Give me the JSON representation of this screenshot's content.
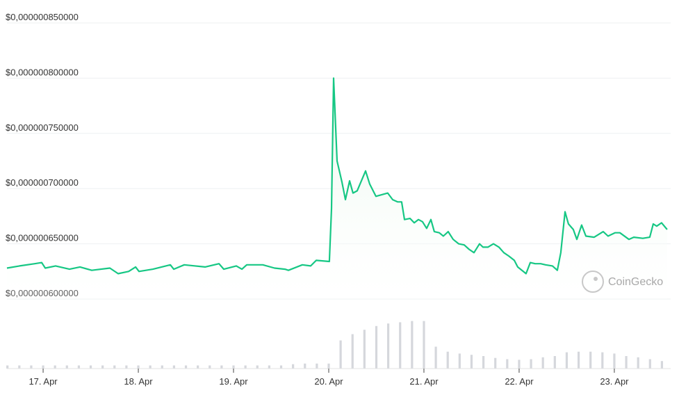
{
  "chart_data": {
    "type": "line",
    "watermark": "CoinGecko",
    "color": "#16c784",
    "fill": "#e6f6e9",
    "x": [
      16.62,
      16.752,
      16.912,
      16.985,
      17.022,
      17.131,
      17.277,
      17.387,
      17.511,
      17.701,
      17.788,
      17.898,
      17.971,
      18.007,
      18.153,
      18.336,
      18.372,
      18.482,
      18.701,
      18.847,
      18.898,
      19.029,
      19.088,
      19.139,
      19.307,
      19.431,
      19.54,
      19.577,
      19.723,
      19.81,
      19.869,
      20.007,
      20.029,
      20.051,
      20.088,
      20.139,
      20.175,
      20.219,
      20.255,
      20.299,
      20.387,
      20.431,
      20.496,
      20.62,
      20.672,
      20.723,
      20.766,
      20.796,
      20.854,
      20.898,
      20.942,
      20.985,
      21.029,
      21.073,
      21.109,
      21.161,
      21.204,
      21.255,
      21.307,
      21.365,
      21.423,
      21.474,
      21.526,
      21.584,
      21.62,
      21.672,
      21.73,
      21.788,
      21.839,
      21.891,
      21.949,
      21.985,
      22.073,
      22.117,
      22.168,
      22.226,
      22.277,
      22.35,
      22.401,
      22.438,
      22.482,
      22.518,
      22.569,
      22.606,
      22.657,
      22.701,
      22.788,
      22.883,
      22.934,
      23.007,
      23.058,
      23.153,
      23.204,
      23.299,
      23.372,
      23.409,
      23.445,
      23.496,
      23.555
    ],
    "values": [
      6.28e-07,
      6.3e-07,
      6.32e-07,
      6.33e-07,
      6.28e-07,
      6.3e-07,
      6.27e-07,
      6.29e-07,
      6.26e-07,
      6.28e-07,
      6.23e-07,
      6.25e-07,
      6.29e-07,
      6.25e-07,
      6.27e-07,
      6.31e-07,
      6.27e-07,
      6.31e-07,
      6.29e-07,
      6.32e-07,
      6.27e-07,
      6.3e-07,
      6.27e-07,
      6.31e-07,
      6.31e-07,
      6.28e-07,
      6.27e-07,
      6.26e-07,
      6.31e-07,
      6.3e-07,
      6.35e-07,
      6.34e-07,
      6.82e-07,
      8e-07,
      7.25e-07,
      7.06e-07,
      6.9e-07,
      7.07e-07,
      6.96e-07,
      6.98e-07,
      7.16e-07,
      7.04e-07,
      6.93e-07,
      6.96e-07,
      6.9e-07,
      6.88e-07,
      6.88e-07,
      6.72e-07,
      6.73e-07,
      6.69e-07,
      6.72e-07,
      6.7e-07,
      6.64e-07,
      6.72e-07,
      6.61e-07,
      6.6e-07,
      6.57e-07,
      6.61e-07,
      6.54e-07,
      6.5e-07,
      6.49e-07,
      6.45e-07,
      6.42e-07,
      6.5e-07,
      6.47e-07,
      6.47e-07,
      6.5e-07,
      6.47e-07,
      6.42e-07,
      6.39e-07,
      6.35e-07,
      6.29e-07,
      6.23e-07,
      6.33e-07,
      6.32e-07,
      6.32e-07,
      6.31e-07,
      6.3e-07,
      6.26e-07,
      6.42e-07,
      6.79e-07,
      6.68e-07,
      6.63e-07,
      6.54e-07,
      6.67e-07,
      6.57e-07,
      6.56e-07,
      6.61e-07,
      6.57e-07,
      6.6e-07,
      6.6e-07,
      6.54e-07,
      6.56e-07,
      6.55e-07,
      6.56e-07,
      6.68e-07,
      6.66e-07,
      6.69e-07,
      6.63e-07
    ],
    "xlim": [
      16.62,
      23.57
    ],
    "xticks": [
      {
        "value": 17,
        "label": "17. Apr"
      },
      {
        "value": 18,
        "label": "18. Apr"
      },
      {
        "value": 19,
        "label": "19. Apr"
      },
      {
        "value": 20,
        "label": "20. Apr"
      },
      {
        "value": 21,
        "label": "21. Apr"
      },
      {
        "value": 22,
        "label": "22. Apr"
      },
      {
        "value": 23,
        "label": "23. Apr"
      }
    ],
    "ylim": [
      6e-07,
      8.5e-07
    ],
    "yticks": [
      {
        "value": 6e-07,
        "label": "$0,000000600000"
      },
      {
        "value": 6.5e-07,
        "label": "$0,000000650000"
      },
      {
        "value": 7e-07,
        "label": "$0,000000700000"
      },
      {
        "value": 7.5e-07,
        "label": "$0,000000750000"
      },
      {
        "value": 8e-07,
        "label": "$0,000000800000"
      },
      {
        "value": 8.5e-07,
        "label": "$0,000000850000"
      }
    ],
    "grid": true,
    "volume": {
      "color": "#d5d7dc",
      "ylim": [
        0,
        100
      ],
      "x": [
        16.625,
        16.75,
        16.875,
        17,
        17.125,
        17.25,
        17.375,
        17.5,
        17.625,
        17.75,
        17.875,
        18,
        18.125,
        18.25,
        18.375,
        18.5,
        18.625,
        18.75,
        18.875,
        19,
        19.125,
        19.25,
        19.375,
        19.5,
        19.625,
        19.75,
        19.875,
        20,
        20.125,
        20.25,
        20.375,
        20.5,
        20.625,
        20.75,
        20.875,
        21,
        21.125,
        21.25,
        21.375,
        21.5,
        21.625,
        21.75,
        21.875,
        22,
        22.125,
        22.25,
        22.375,
        22.5,
        22.625,
        22.75,
        22.875,
        23,
        23.125,
        23.25,
        23.375,
        23.5
      ],
      "values": [
        5,
        5,
        5,
        5,
        5,
        5,
        5,
        5,
        5,
        5,
        5,
        5,
        5,
        5,
        5,
        5,
        5,
        5,
        5,
        5,
        5,
        5,
        5,
        5,
        7,
        8,
        8,
        8,
        45,
        55,
        62,
        68,
        72,
        74,
        76,
        76,
        35,
        27,
        24,
        22,
        20,
        17,
        15,
        14,
        15,
        18,
        20,
        26,
        27,
        27,
        26,
        24,
        20,
        18,
        15,
        12
      ]
    }
  }
}
